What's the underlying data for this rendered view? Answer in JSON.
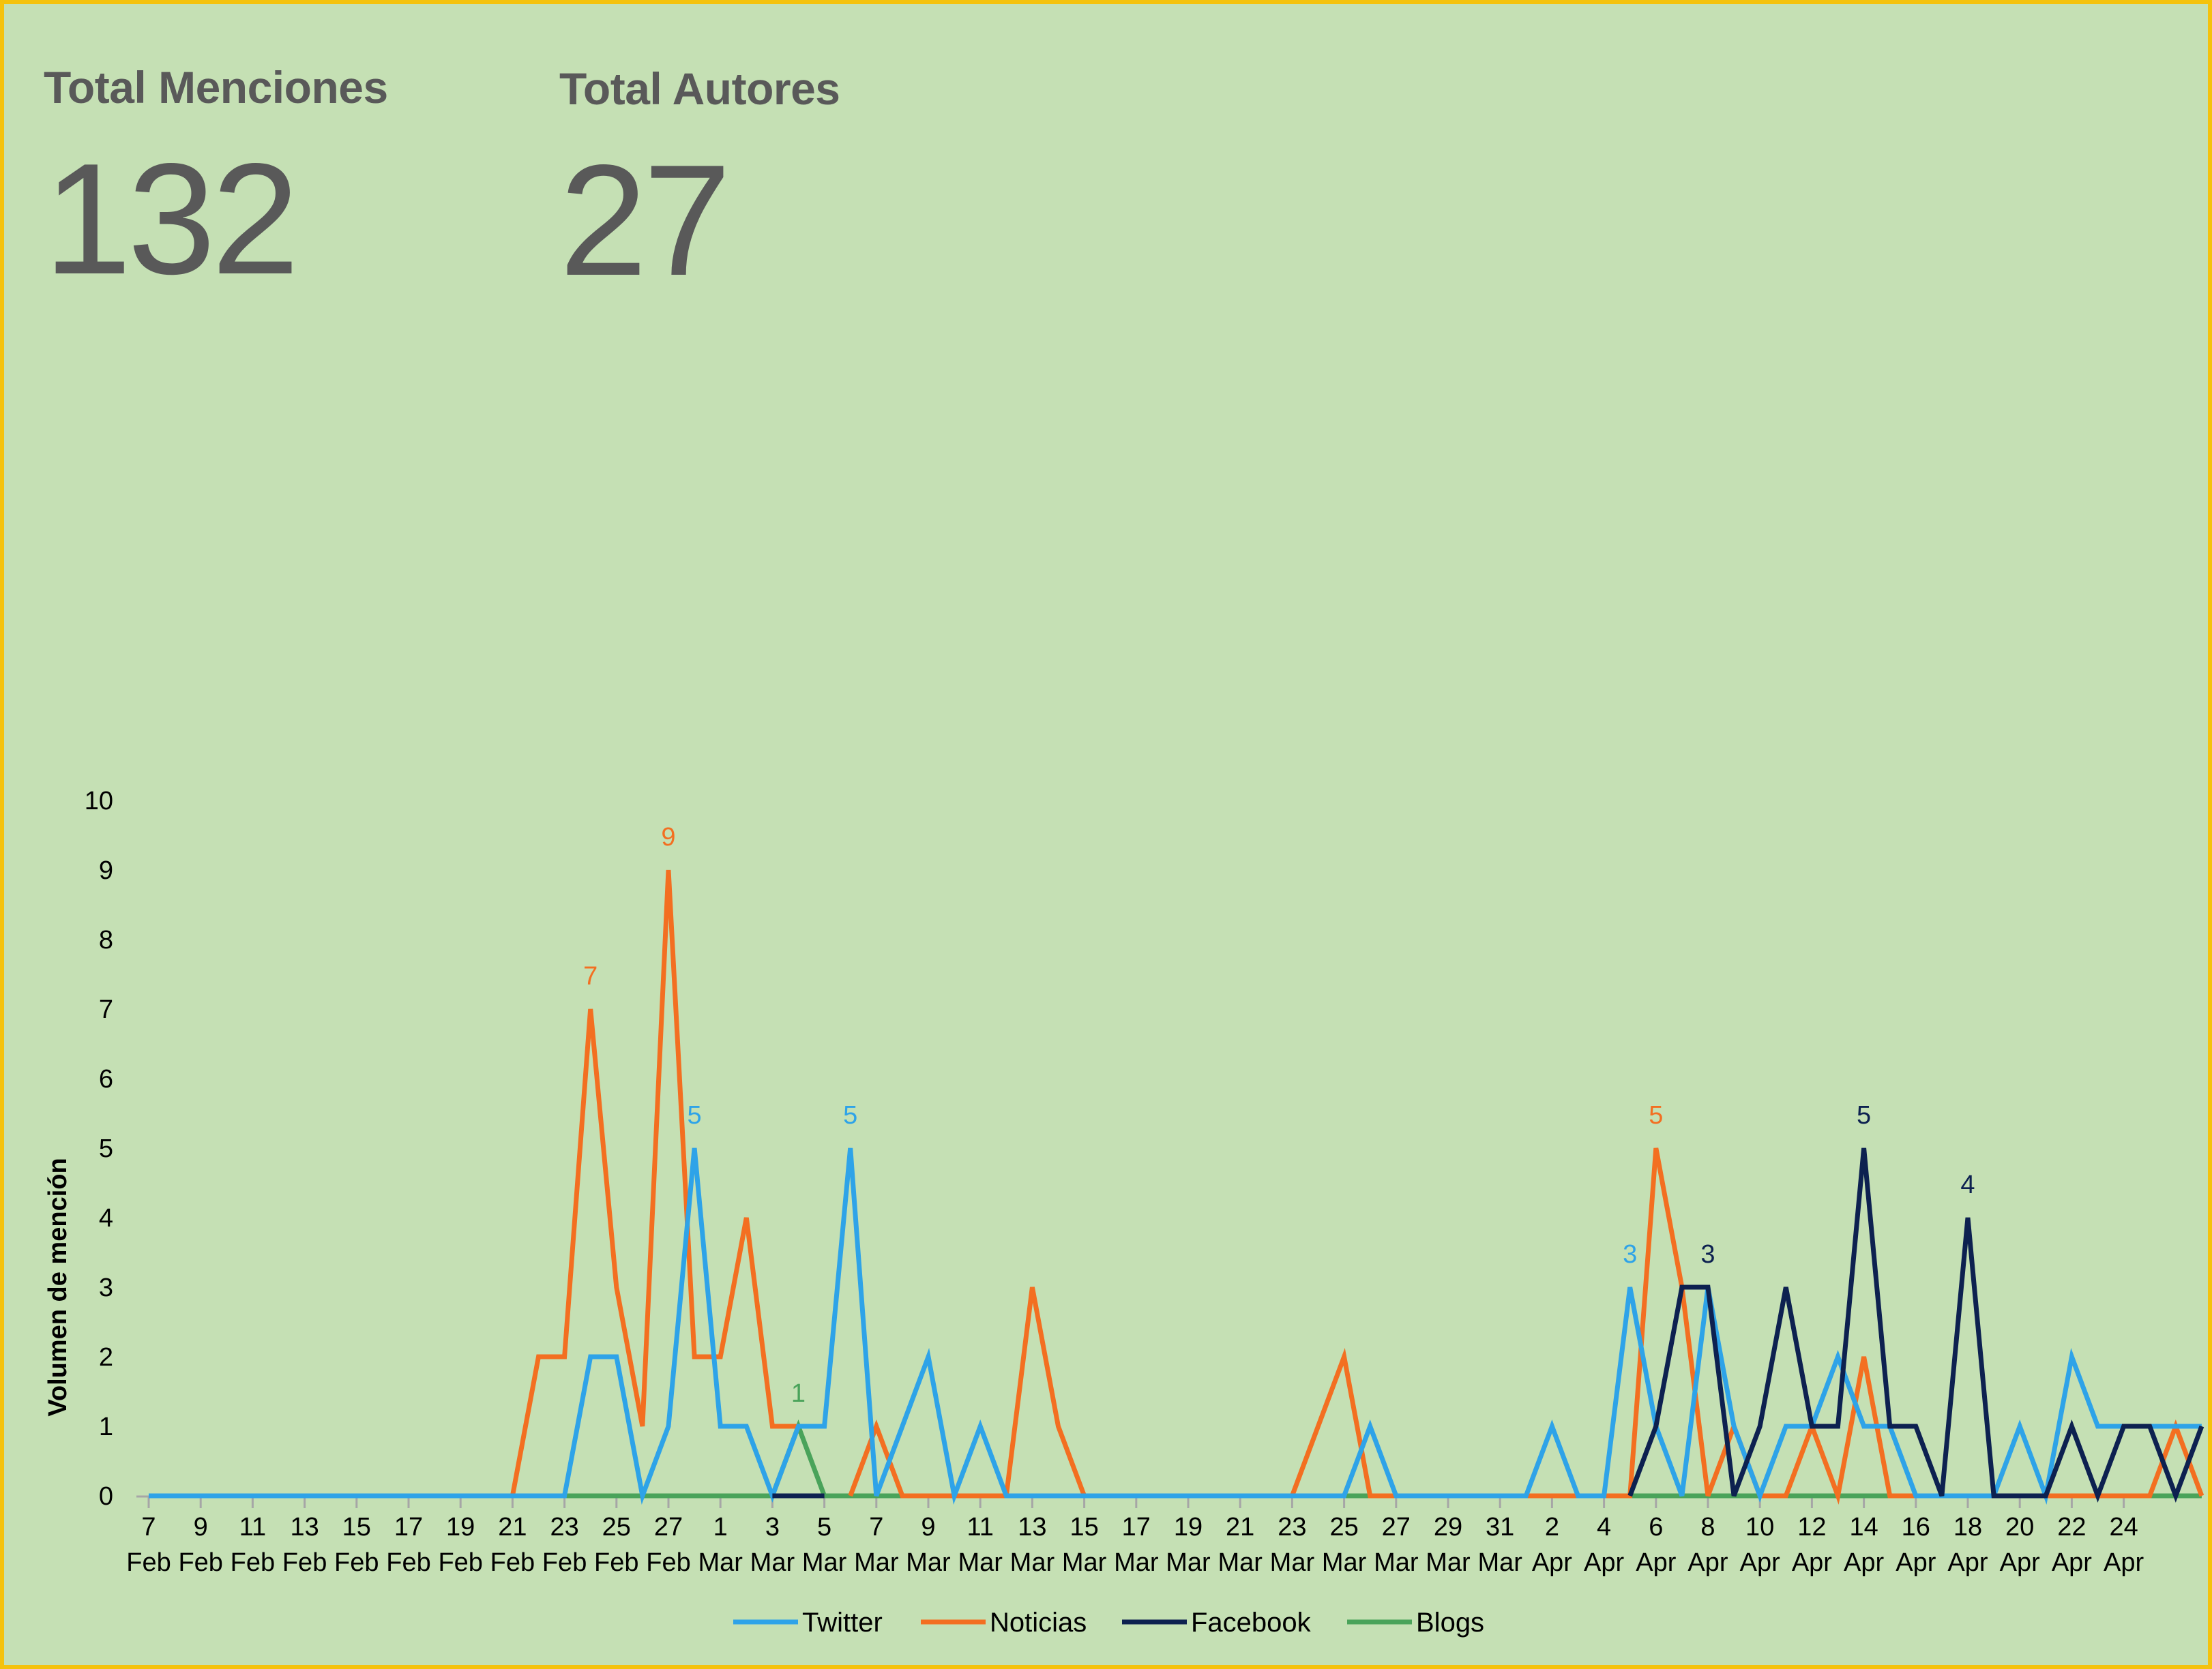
{
  "kpis": {
    "menciones": {
      "label": "Total Menciones",
      "value": "132"
    },
    "autores": {
      "label": "Total Autores",
      "value": "27"
    }
  },
  "chart_data": {
    "type": "line",
    "title": "",
    "xlabel": "",
    "ylabel": "Volumen de mención",
    "ylim": [
      0,
      10
    ],
    "yticks": [
      0,
      1,
      2,
      3,
      4,
      5,
      6,
      7,
      8,
      9,
      10
    ],
    "grid": false,
    "legend_position": "bottom",
    "x_tick_labels": [
      [
        "7",
        "Feb"
      ],
      [
        "9",
        "Feb"
      ],
      [
        "11",
        "Feb"
      ],
      [
        "13",
        "Feb"
      ],
      [
        "15",
        "Feb"
      ],
      [
        "17",
        "Feb"
      ],
      [
        "19",
        "Feb"
      ],
      [
        "21",
        "Feb"
      ],
      [
        "23",
        "Feb"
      ],
      [
        "25",
        "Feb"
      ],
      [
        "27",
        "Feb"
      ],
      [
        "1",
        "Mar"
      ],
      [
        "3",
        "Mar"
      ],
      [
        "5",
        "Mar"
      ],
      [
        "7",
        "Mar"
      ],
      [
        "9",
        "Mar"
      ],
      [
        "11",
        "Mar"
      ],
      [
        "13",
        "Mar"
      ],
      [
        "15",
        "Mar"
      ],
      [
        "17",
        "Mar"
      ],
      [
        "19",
        "Mar"
      ],
      [
        "21",
        "Mar"
      ],
      [
        "23",
        "Mar"
      ],
      [
        "25",
        "Mar"
      ],
      [
        "27",
        "Mar"
      ],
      [
        "29",
        "Mar"
      ],
      [
        "31",
        "Mar"
      ],
      [
        "2",
        "Apr"
      ],
      [
        "4",
        "Apr"
      ],
      [
        "6",
        "Apr"
      ],
      [
        "8",
        "Apr"
      ],
      [
        "10",
        "Apr"
      ],
      [
        "12",
        "Apr"
      ],
      [
        "14",
        "Apr"
      ],
      [
        "16",
        "Apr"
      ],
      [
        "18",
        "Apr"
      ],
      [
        "20",
        "Apr"
      ],
      [
        "22",
        "Apr"
      ],
      [
        "24",
        "Apr"
      ]
    ],
    "x_days": 79,
    "series": [
      {
        "name": "Twitter",
        "color": "#2ea3e8",
        "values": [
          0,
          0,
          0,
          0,
          0,
          0,
          0,
          0,
          0,
          0,
          0,
          0,
          0,
          0,
          0,
          0,
          0,
          2,
          2,
          0,
          1,
          5,
          1,
          1,
          0,
          1,
          1,
          5,
          0,
          1,
          2,
          0,
          1,
          0,
          0,
          0,
          0,
          0,
          0,
          0,
          0,
          0,
          0,
          0,
          0,
          0,
          0,
          1,
          0,
          0,
          0,
          0,
          0,
          0,
          1,
          0,
          0,
          3,
          1,
          0,
          3,
          1,
          0,
          1,
          1,
          2,
          1,
          1,
          0,
          0,
          0,
          0,
          1,
          0,
          2,
          1,
          1,
          1,
          1,
          1
        ],
        "labels": [
          {
            "i": 21,
            "text": "5"
          },
          {
            "i": 27,
            "text": "5"
          },
          {
            "i": 57,
            "text": "3"
          }
        ]
      },
      {
        "name": "Noticias",
        "color": "#f36f21",
        "values": [
          0,
          0,
          0,
          0,
          0,
          0,
          0,
          0,
          0,
          0,
          0,
          0,
          0,
          0,
          0,
          2,
          2,
          7,
          3,
          1,
          9,
          2,
          2,
          4,
          1,
          1,
          null,
          0,
          1,
          0,
          0,
          0,
          0,
          0,
          3,
          1,
          0,
          0,
          0,
          0,
          0,
          0,
          0,
          0,
          0,
          1,
          2,
          0,
          0,
          0,
          0,
          0,
          0,
          0,
          0,
          0,
          0,
          0,
          5,
          3,
          0,
          1,
          0,
          0,
          1,
          0,
          2,
          0,
          0,
          0,
          0,
          0,
          0,
          0,
          0,
          0,
          0,
          0,
          1,
          0
        ],
        "labels": [
          {
            "i": 17,
            "text": "7"
          },
          {
            "i": 20,
            "text": "9"
          },
          {
            "i": 58,
            "text": "5"
          }
        ]
      },
      {
        "name": "Facebook",
        "color": "#0d2150",
        "values": [
          null,
          null,
          null,
          null,
          null,
          null,
          null,
          null,
          null,
          null,
          null,
          null,
          null,
          null,
          null,
          null,
          null,
          null,
          null,
          null,
          null,
          null,
          null,
          null,
          0,
          0,
          0,
          null,
          null,
          null,
          null,
          null,
          null,
          null,
          null,
          null,
          null,
          null,
          null,
          null,
          null,
          null,
          null,
          null,
          null,
          null,
          null,
          null,
          null,
          null,
          null,
          null,
          null,
          null,
          null,
          null,
          null,
          0,
          1,
          3,
          3,
          0,
          1,
          3,
          1,
          1,
          5,
          1,
          1,
          0,
          4,
          0,
          0,
          0,
          1,
          0,
          1,
          1,
          0,
          1
        ],
        "labels": [
          {
            "i": 60,
            "text": "3"
          },
          {
            "i": 66,
            "text": "5"
          },
          {
            "i": 70,
            "text": "4"
          }
        ]
      },
      {
        "name": "Blogs",
        "color": "#4aa35a",
        "values": [
          0,
          0,
          0,
          0,
          0,
          0,
          0,
          0,
          0,
          0,
          0,
          0,
          0,
          0,
          0,
          0,
          0,
          0,
          0,
          0,
          0,
          0,
          0,
          0,
          0,
          1,
          0,
          0,
          0,
          0,
          0,
          0,
          0,
          0,
          0,
          0,
          0,
          0,
          0,
          0,
          0,
          0,
          0,
          0,
          0,
          0,
          0,
          0,
          0,
          0,
          0,
          0,
          0,
          0,
          0,
          0,
          0,
          0,
          0,
          0,
          0,
          0,
          0,
          0,
          0,
          0,
          0,
          0,
          0,
          0,
          0,
          0,
          0,
          0,
          0,
          0,
          0,
          0,
          0,
          0
        ],
        "labels": [
          {
            "i": 25,
            "text": "1"
          }
        ]
      }
    ]
  }
}
